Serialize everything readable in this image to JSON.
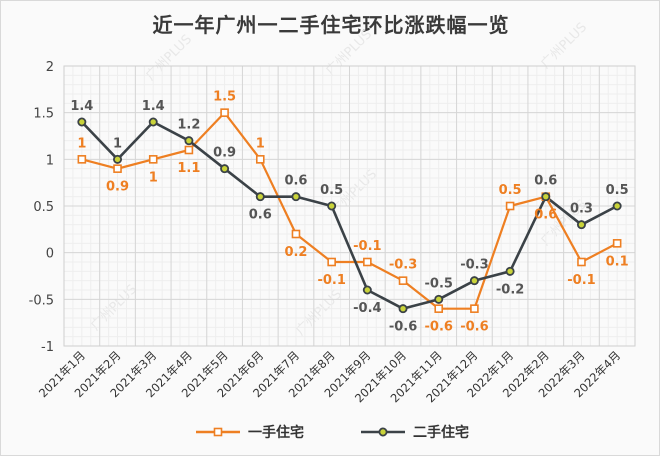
{
  "chart_data": {
    "type": "line",
    "title": "近一年广州一二手住宅环比涨跌幅一览",
    "categories": [
      "2021年1月",
      "2021年2月",
      "2021年3月",
      "2021年4月",
      "2021年5月",
      "2021年6月",
      "2021年7月",
      "2021年8月",
      "2021年9月",
      "2021年10月",
      "2021年11月",
      "2021年12月",
      "2022年1月",
      "2022年2月",
      "2022年3月",
      "2022年4月"
    ],
    "ylim": [
      -1,
      2
    ],
    "yticks": [
      2,
      1.5,
      1,
      0.5,
      0,
      -0.5,
      -1
    ],
    "ytick_labels": [
      "2",
      "1.5",
      "1",
      "0.5",
      "0",
      "-0.5",
      "-1"
    ],
    "grid": true,
    "legend_position": "bottom-center",
    "series": [
      {
        "name": "一手住宅",
        "color": "#ee7f22",
        "marker": "square",
        "values": [
          1,
          0.9,
          1,
          1.1,
          1.5,
          1,
          0.2,
          -0.1,
          -0.1,
          -0.3,
          -0.6,
          -0.6,
          0.5,
          0.6,
          -0.1,
          0.1
        ],
        "labels": [
          "1",
          "0.9",
          "1",
          "1.1",
          "1.5",
          "1",
          "0.2",
          "-0.1",
          "-0.1",
          "-0.3",
          "-0.6",
          "-0.6",
          "0.5",
          "0.6",
          "-0.1",
          "0.1"
        ]
      },
      {
        "name": "二手住宅",
        "color": "#3b4247",
        "marker": "circle",
        "values": [
          1.4,
          1,
          1.4,
          1.2,
          0.9,
          0.6,
          0.6,
          0.5,
          -0.4,
          -0.6,
          -0.5,
          -0.3,
          -0.2,
          0.6,
          0.3,
          0.5
        ],
        "labels": [
          "1.4",
          "1",
          "1.4",
          "1.2",
          "0.9",
          "0.6",
          "0.6",
          "0.5",
          "-0.4",
          "-0.6",
          "-0.5",
          "-0.3",
          "-0.2",
          "0.6",
          "0.3",
          "0.5"
        ]
      }
    ],
    "watermark": "广州PLUS"
  }
}
